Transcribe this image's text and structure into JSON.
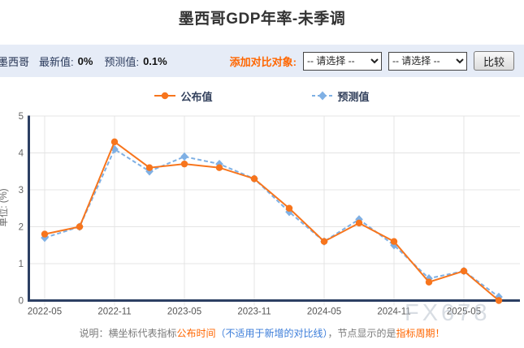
{
  "title": "墨西哥GDP年率-未季调",
  "info_bar": {
    "country": "墨西哥",
    "latest_label": "最新值:",
    "latest_value": "0%",
    "forecast_label": "预测值:",
    "forecast_value": "0.1%",
    "compare_label": "添加对比对象:",
    "select1_value": "-- 请选择 --",
    "select2_value": "-- 请选择 --",
    "compare_button": "比较"
  },
  "legend": {
    "actual_label": "公布值",
    "forecast_label": "预测值"
  },
  "watermark": "FX678",
  "note": {
    "prefix": "说明：横坐标代表指标",
    "orange1": "公布时间",
    "blue_paren": "（不适用于新增的对比线）",
    "middle": "，节点显示的是",
    "orange2": "指标周期！"
  },
  "colors": {
    "actual_series": "#f7751d",
    "forecast_series": "#7fb0e4",
    "axis": "#2c3f63",
    "grid": "#e4e4e4",
    "accent_orange": "#ff6600",
    "accent_blue": "#3a7cd9",
    "bar_background": "#e6ecf7",
    "watermark_gray": "#b9c2cd"
  },
  "chart_data": {
    "type": "line",
    "title": "墨西哥GDP年率-未季调",
    "xlabel": "",
    "ylabel": "单位: (%)",
    "ylim": [
      0,
      5
    ],
    "yticks": [
      0,
      1,
      2,
      3,
      4,
      5
    ],
    "grid": true,
    "legend_position": "top",
    "x": [
      "2022-05",
      "2022-08",
      "2022-11",
      "2023-02",
      "2023-05",
      "2023-08",
      "2023-11",
      "2024-02",
      "2024-05",
      "2024-08",
      "2024-11",
      "2025-02",
      "2025-05",
      "2025-08"
    ],
    "xtick_every": 2,
    "series": [
      {
        "name": "预测值",
        "color": "#7fb0e4",
        "style": "dashed",
        "marker": "diamond",
        "values": [
          1.7,
          2.0,
          4.1,
          3.5,
          3.9,
          3.7,
          3.3,
          2.4,
          1.6,
          2.2,
          1.5,
          0.6,
          0.8,
          0.1
        ]
      },
      {
        "name": "公布值",
        "color": "#f7751d",
        "style": "solid",
        "marker": "circle",
        "values": [
          1.8,
          2.0,
          4.3,
          3.6,
          3.7,
          3.6,
          3.3,
          2.5,
          1.6,
          2.1,
          1.6,
          0.5,
          0.8,
          0.0
        ]
      }
    ]
  }
}
